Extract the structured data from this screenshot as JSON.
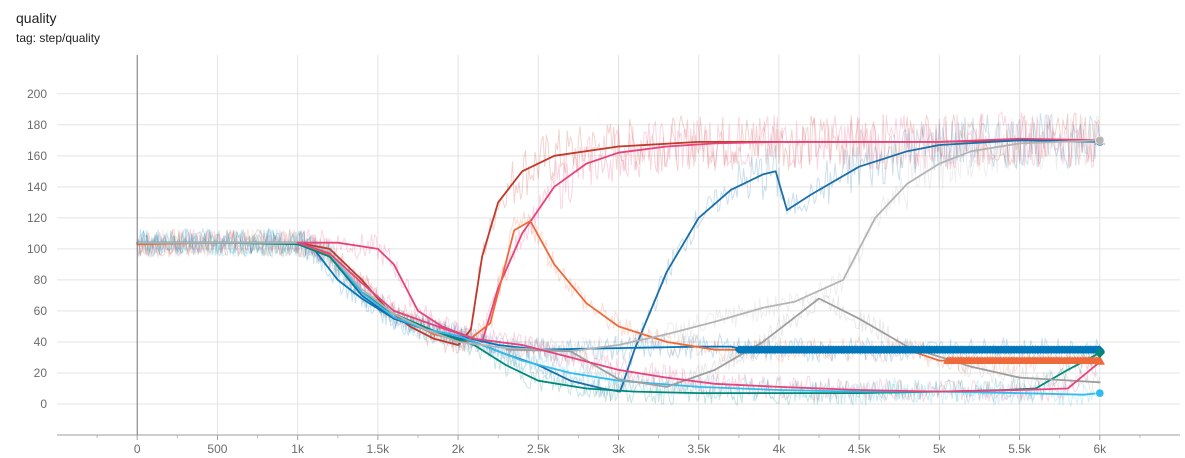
{
  "header": {
    "title": "quality",
    "tag": "tag: step/quality"
  },
  "chart_data": {
    "type": "line",
    "title": "quality",
    "xlabel": "",
    "ylabel": "",
    "xlim": [
      -500,
      6500
    ],
    "ylim": [
      -20,
      225
    ],
    "grid": true,
    "legend": "none",
    "x_ticks": [
      0,
      500,
      1000,
      1500,
      2000,
      2500,
      3000,
      3500,
      4000,
      4500,
      5000,
      5500,
      6000
    ],
    "x_tick_labels": [
      "0",
      "500",
      "1k",
      "1.5k",
      "2k",
      "2.5k",
      "3k",
      "3.5k",
      "4k",
      "4.5k",
      "5k",
      "5.5k",
      "6k"
    ],
    "y_ticks": [
      0,
      20,
      40,
      60,
      80,
      100,
      120,
      140,
      160,
      180,
      200
    ],
    "y_tick_labels": [
      "0",
      "20",
      "40",
      "60",
      "80",
      "100",
      "120",
      "140",
      "160",
      "180",
      "200"
    ],
    "series": [
      {
        "color": "#c0392b",
        "end_marker": "circle",
        "points": [
          [
            0,
            103
          ],
          [
            100,
            104
          ],
          [
            400,
            104
          ],
          [
            800,
            104
          ],
          [
            1000,
            104
          ],
          [
            1200,
            100
          ],
          [
            1400,
            80
          ],
          [
            1550,
            62
          ],
          [
            1700,
            50
          ],
          [
            1850,
            42
          ],
          [
            2000,
            38
          ],
          [
            2080,
            48
          ],
          [
            2150,
            95
          ],
          [
            2250,
            130
          ],
          [
            2400,
            150
          ],
          [
            2600,
            160
          ],
          [
            3000,
            166
          ],
          [
            3500,
            169
          ],
          [
            4000,
            169
          ],
          [
            4500,
            169
          ],
          [
            5000,
            169
          ],
          [
            5500,
            170
          ],
          [
            6000,
            170
          ]
        ]
      },
      {
        "color": "#e7437c",
        "end_marker": "triangle",
        "points": [
          [
            0,
            103
          ],
          [
            200,
            104
          ],
          [
            600,
            104
          ],
          [
            1000,
            104
          ],
          [
            1250,
            104
          ],
          [
            1500,
            100
          ],
          [
            1600,
            90
          ],
          [
            1750,
            60
          ],
          [
            1900,
            50
          ],
          [
            2050,
            44
          ],
          [
            2150,
            40
          ],
          [
            2250,
            75
          ],
          [
            2400,
            110
          ],
          [
            2600,
            140
          ],
          [
            2800,
            155
          ],
          [
            3000,
            162
          ],
          [
            3300,
            166
          ],
          [
            3600,
            168
          ],
          [
            4000,
            169
          ],
          [
            4500,
            169
          ],
          [
            5000,
            169
          ],
          [
            5500,
            171
          ],
          [
            6000,
            170
          ]
        ]
      },
      {
        "color": "#0077bb",
        "end_marker": "diamond",
        "points": [
          [
            0,
            104
          ],
          [
            300,
            104
          ],
          [
            800,
            104
          ],
          [
            1000,
            104
          ],
          [
            1100,
            100
          ],
          [
            1250,
            80
          ],
          [
            1400,
            68
          ],
          [
            1600,
            55
          ],
          [
            1800,
            48
          ],
          [
            2000,
            44
          ],
          [
            2250,
            38
          ],
          [
            2500,
            35
          ],
          [
            3000,
            36
          ],
          [
            3500,
            37
          ],
          [
            3700,
            37
          ],
          [
            3750,
            36
          ],
          [
            4000,
            35
          ],
          [
            4500,
            35
          ],
          [
            5000,
            35
          ],
          [
            5500,
            35
          ],
          [
            6000,
            34
          ]
        ]
      },
      {
        "color": "#1a6fa8",
        "end_marker": "circle",
        "points": [
          [
            0,
            104
          ],
          [
            500,
            104
          ],
          [
            1000,
            104
          ],
          [
            1200,
            95
          ],
          [
            1400,
            70
          ],
          [
            1600,
            55
          ],
          [
            1900,
            45
          ],
          [
            2100,
            40
          ],
          [
            2300,
            32
          ],
          [
            2500,
            25
          ],
          [
            2700,
            15
          ],
          [
            2900,
            10
          ],
          [
            3010,
            8
          ],
          [
            3100,
            35
          ],
          [
            3300,
            85
          ],
          [
            3500,
            120
          ],
          [
            3700,
            138
          ],
          [
            3900,
            148
          ],
          [
            3980,
            150
          ],
          [
            4050,
            125
          ],
          [
            4200,
            135
          ],
          [
            4500,
            153
          ],
          [
            4800,
            163
          ],
          [
            5000,
            167
          ],
          [
            5500,
            170
          ],
          [
            6000,
            169
          ]
        ]
      },
      {
        "color": "#ee6a3a",
        "end_marker": "triangle",
        "points": [
          [
            0,
            103
          ],
          [
            500,
            104
          ],
          [
            1000,
            104
          ],
          [
            1200,
            96
          ],
          [
            1400,
            72
          ],
          [
            1600,
            58
          ],
          [
            1850,
            45
          ],
          [
            2050,
            40
          ],
          [
            2200,
            52
          ],
          [
            2350,
            112
          ],
          [
            2450,
            118
          ],
          [
            2600,
            90
          ],
          [
            2800,
            65
          ],
          [
            3000,
            50
          ],
          [
            3300,
            40
          ],
          [
            3600,
            35
          ],
          [
            3900,
            35
          ],
          [
            4300,
            35
          ],
          [
            4800,
            35
          ],
          [
            5000,
            28
          ],
          [
            5500,
            28
          ],
          [
            6000,
            28
          ]
        ]
      },
      {
        "color": "#00897b",
        "end_marker": "diamond",
        "points": [
          [
            0,
            104
          ],
          [
            500,
            104
          ],
          [
            1000,
            103
          ],
          [
            1200,
            95
          ],
          [
            1400,
            72
          ],
          [
            1600,
            58
          ],
          [
            1900,
            45
          ],
          [
            2100,
            38
          ],
          [
            2300,
            25
          ],
          [
            2500,
            15
          ],
          [
            2800,
            10
          ],
          [
            3100,
            8
          ],
          [
            3500,
            7
          ],
          [
            4000,
            7
          ],
          [
            4500,
            7
          ],
          [
            5000,
            8
          ],
          [
            5400,
            9
          ],
          [
            5600,
            10
          ],
          [
            5800,
            22
          ],
          [
            6000,
            33
          ]
        ]
      },
      {
        "color": "#33bbee",
        "end_marker": "circle",
        "points": [
          [
            0,
            104
          ],
          [
            500,
            104
          ],
          [
            1000,
            104
          ],
          [
            1200,
            97
          ],
          [
            1400,
            72
          ],
          [
            1600,
            56
          ],
          [
            1800,
            48
          ],
          [
            2000,
            44
          ],
          [
            2200,
            36
          ],
          [
            2400,
            28
          ],
          [
            2700,
            20
          ],
          [
            3000,
            15
          ],
          [
            3500,
            11
          ],
          [
            4000,
            9
          ],
          [
            4500,
            8
          ],
          [
            5000,
            8
          ],
          [
            5500,
            7
          ],
          [
            5900,
            6
          ],
          [
            6000,
            7
          ]
        ]
      },
      {
        "color": "#b4b4b4",
        "end_marker": "circle",
        "points": [
          [
            0,
            104
          ],
          [
            500,
            104
          ],
          [
            1000,
            104
          ],
          [
            1200,
            97
          ],
          [
            1400,
            74
          ],
          [
            1600,
            58
          ],
          [
            1800,
            48
          ],
          [
            2000,
            40
          ],
          [
            2300,
            36
          ],
          [
            2700,
            34
          ],
          [
            3000,
            38
          ],
          [
            3300,
            45
          ],
          [
            3600,
            53
          ],
          [
            3900,
            62
          ],
          [
            4100,
            66
          ],
          [
            4400,
            80
          ],
          [
            4600,
            120
          ],
          [
            4800,
            142
          ],
          [
            5000,
            155
          ],
          [
            5200,
            163
          ],
          [
            5500,
            168
          ],
          [
            6000,
            170
          ]
        ]
      },
      {
        "color": "#9e9e9e",
        "end_marker": "none",
        "points": [
          [
            2300,
            35
          ],
          [
            2700,
            34
          ],
          [
            3000,
            16
          ],
          [
            3300,
            11
          ],
          [
            3600,
            22
          ],
          [
            3900,
            40
          ],
          [
            4150,
            60
          ],
          [
            4250,
            68
          ],
          [
            4500,
            55
          ],
          [
            4800,
            37
          ],
          [
            5200,
            24
          ],
          [
            5500,
            17
          ],
          [
            6000,
            14
          ]
        ]
      },
      {
        "color": "#e7437c",
        "end_marker": "none",
        "points": [
          [
            1000,
            104
          ],
          [
            1200,
            97
          ],
          [
            1400,
            78
          ],
          [
            1600,
            60
          ],
          [
            1900,
            49
          ],
          [
            2100,
            42
          ],
          [
            2400,
            38
          ],
          [
            2700,
            30
          ],
          [
            3000,
            22
          ],
          [
            3300,
            17
          ],
          [
            3600,
            13
          ],
          [
            4000,
            11
          ],
          [
            4500,
            9
          ],
          [
            5000,
            8
          ],
          [
            5500,
            9
          ],
          [
            5800,
            10
          ],
          [
            6000,
            27
          ]
        ]
      }
    ]
  }
}
